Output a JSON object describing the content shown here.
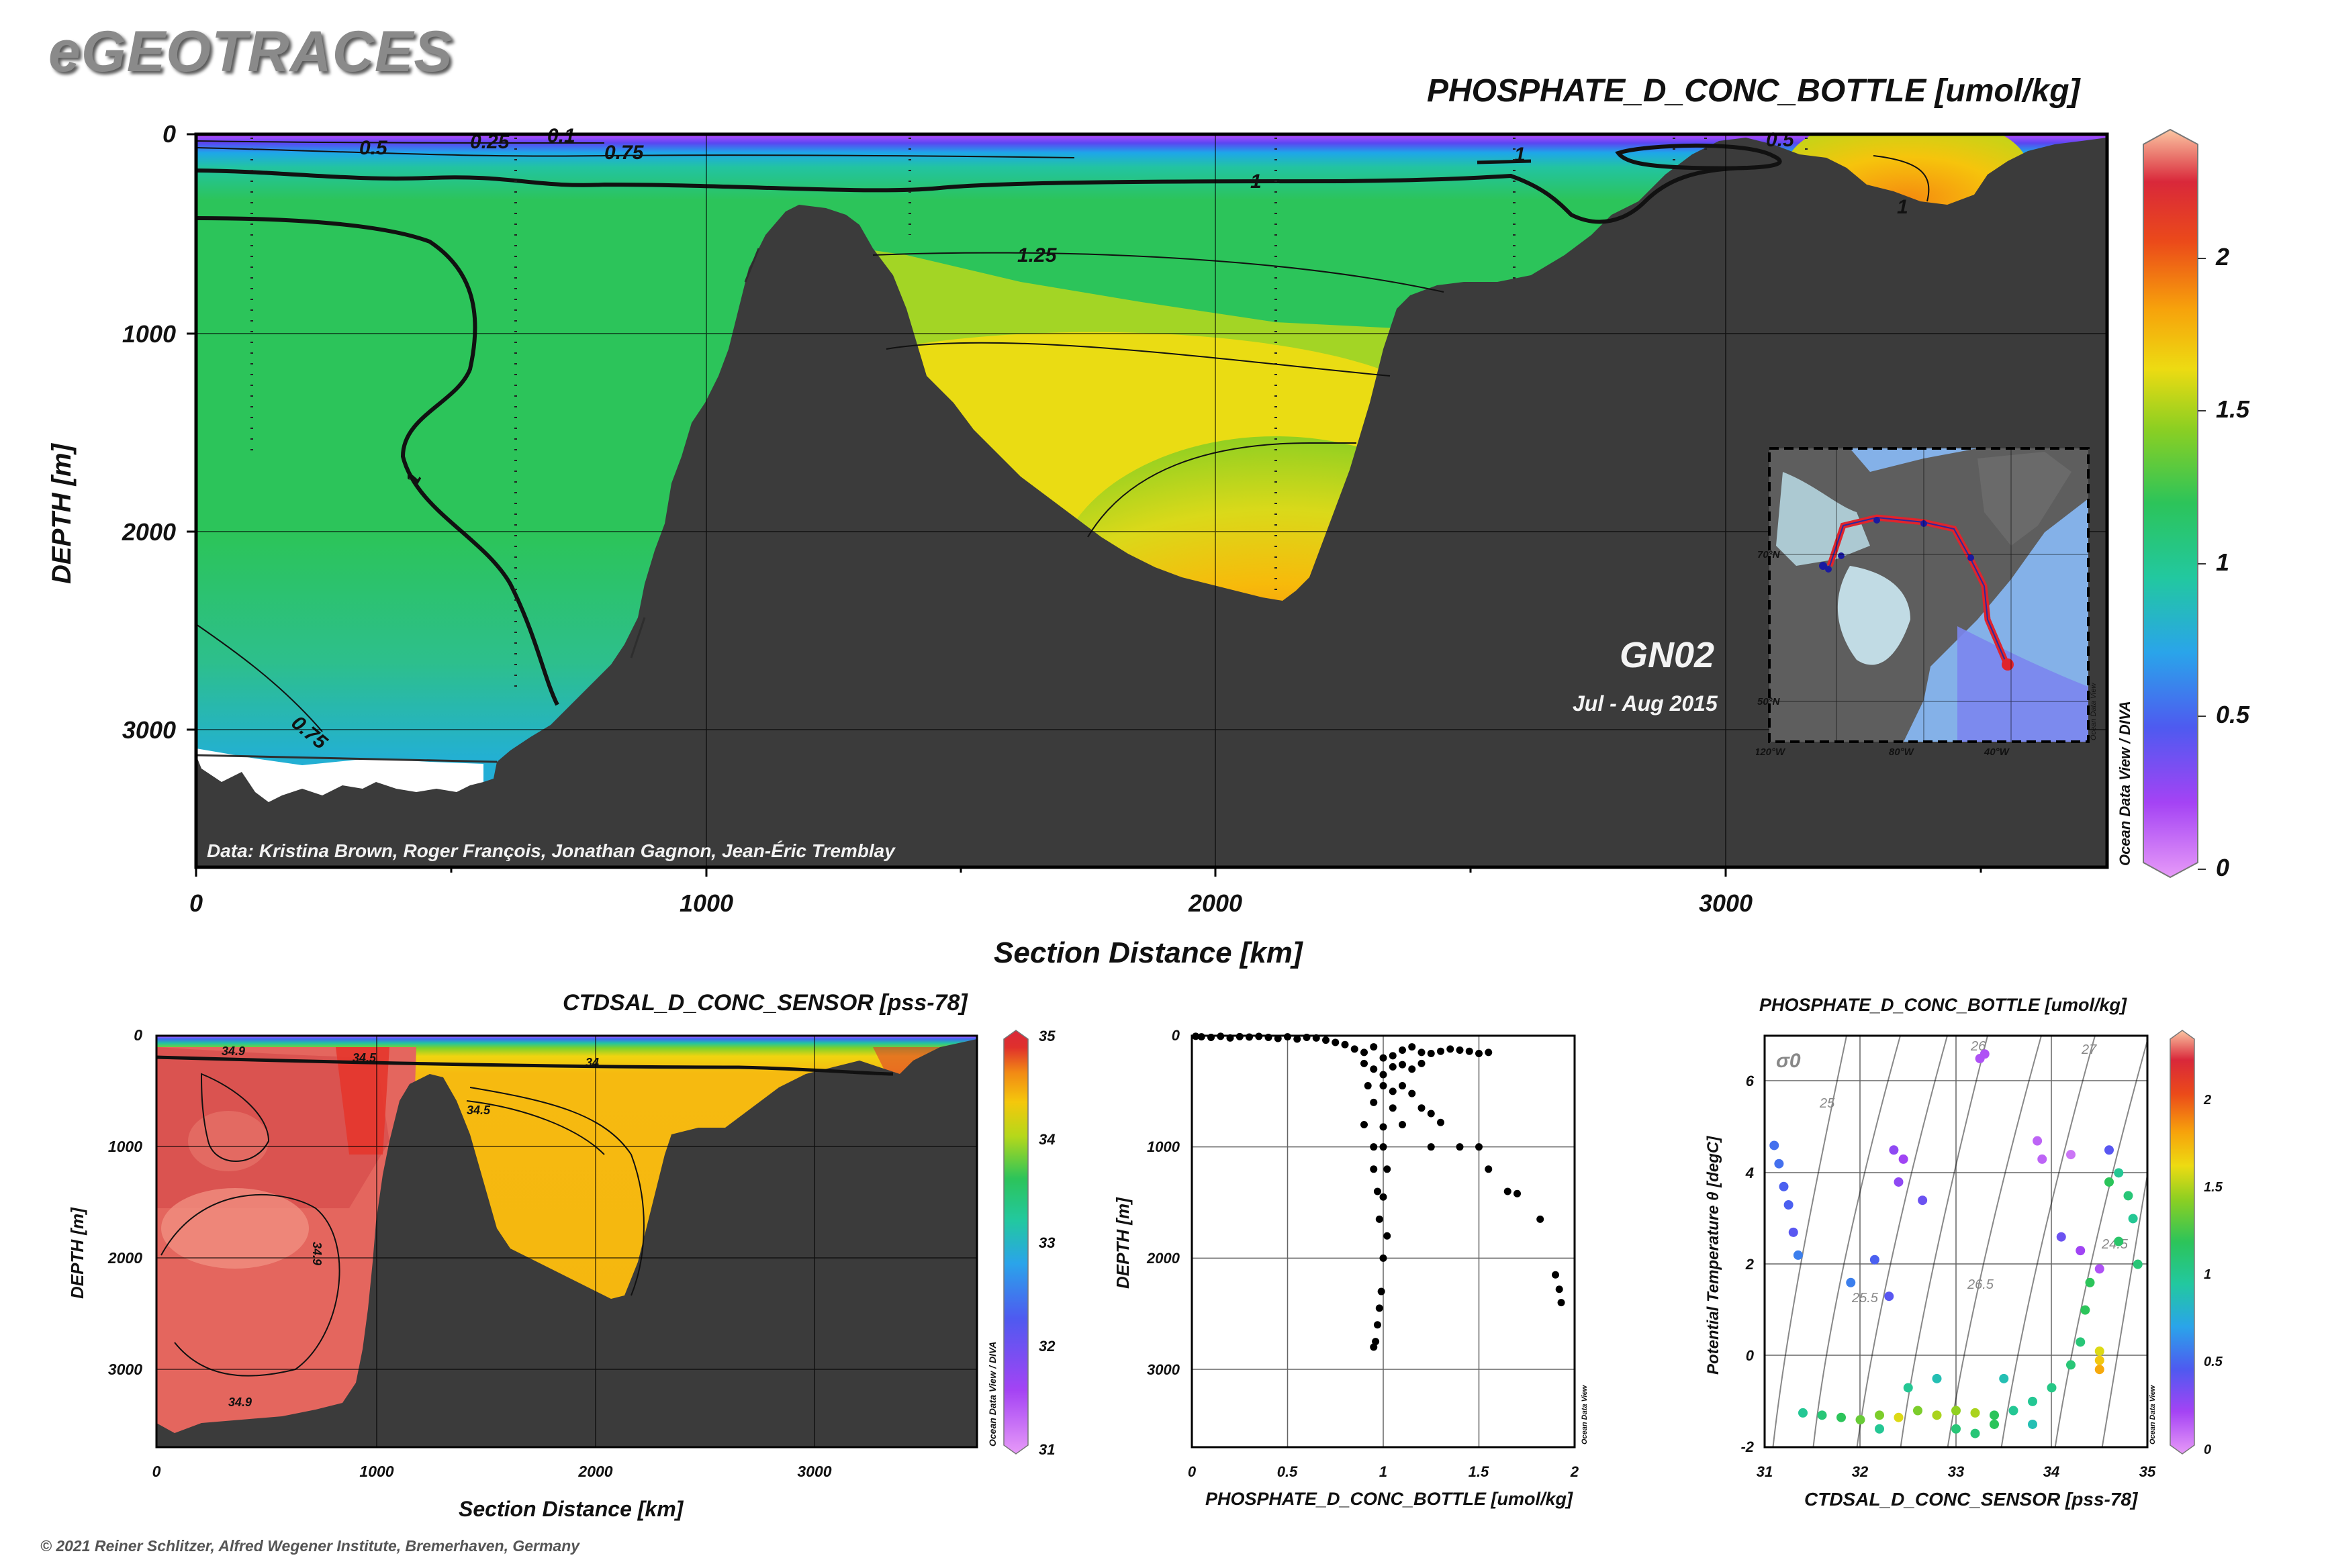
{
  "brand": "eGEOTRACES",
  "footer": "© 2021 Reiner Schlitzer, Alfred Wegener Institute, Bremerhaven, Germany",
  "main_section": {
    "title": "PHOSPHATE_D_CONC_BOTTLE [umol/kg]",
    "ylabel": "DEPTH [m]",
    "xlabel": "Section Distance [km]",
    "cruise": "GN02",
    "dates": "Jul - Aug 2015",
    "credit": "Data: Kristina Brown, Roger François, Jonathan Gagnon, Jean-Éric Tremblay",
    "odv_label": "Ocean Data View / DIVA"
  },
  "inset_map": {
    "lat_labels": [
      "70°N",
      "50°N"
    ],
    "lon_labels": [
      "120°W",
      "80°W",
      "40°W"
    ],
    "odv_label": "Ocean Data View"
  },
  "sal_section": {
    "title": "CTDSAL_D_CONC_SENSOR [pss-78]",
    "ylabel": "DEPTH [m]",
    "xlabel": "Section Distance [km]",
    "odv_label": "Ocean Data View / DIVA"
  },
  "profile": {
    "ylabel": "DEPTH [m]",
    "xlabel": "PHOSPHATE_D_CONC_BOTTLE [umol/kg]",
    "odv_label": "Ocean Data View"
  },
  "ts": {
    "title": "PHOSPHATE_D_CONC_BOTTLE [umol/kg]",
    "ylabel": "Potential Temperature θ [degC]",
    "xlabel": "CTDSAL_D_CONC_SENSOR [pss-78]",
    "sigma_label": "σ0",
    "odv_label": "Ocean Data View"
  },
  "chart_data": [
    {
      "type": "heatmap",
      "title": "PHOSPHATE_D_CONC_BOTTLE [umol/kg]",
      "xlabel": "Section Distance [km]",
      "ylabel": "DEPTH [m]",
      "xlim": [
        0,
        3750
      ],
      "ylim": [
        3700,
        0
      ],
      "x_ticks": [
        0,
        1000,
        2000,
        3000
      ],
      "y_ticks": [
        0,
        1000,
        2000,
        3000
      ],
      "colorbar": {
        "range": [
          0,
          2.4
        ],
        "ticks": [
          0,
          0.5,
          1,
          1.5,
          2
        ]
      },
      "contour_labels": [
        {
          "value": "0.5",
          "x": 350,
          "depth": 60
        },
        {
          "value": "0.25",
          "x": 580,
          "depth": 30
        },
        {
          "value": "0.1",
          "x": 720,
          "depth": 20
        },
        {
          "value": "0.75",
          "x": 850,
          "depth": 90
        },
        {
          "value": "1",
          "x": 2080,
          "depth": 230
        },
        {
          "value": "1.25",
          "x": 1700,
          "depth": 610
        },
        {
          "value": "1",
          "x": 450,
          "depth": 1800
        },
        {
          "value": "0.75",
          "x": 380,
          "depth": 3050
        },
        {
          "value": "1",
          "x": 2600,
          "depth": 100
        },
        {
          "value": "0.5",
          "x": 3005,
          "depth": 20
        },
        {
          "value": "1",
          "x": 3330,
          "depth": 350
        }
      ],
      "stations_km": [
        110,
        625,
        1400,
        2125,
        2590,
        2910,
        2975,
        3150
      ],
      "bathymetry": [
        [
          0,
          3120
        ],
        [
          80,
          3180
        ],
        [
          150,
          3300
        ],
        [
          250,
          3250
        ],
        [
          350,
          3280
        ],
        [
          480,
          3150
        ],
        [
          600,
          3000
        ],
        [
          700,
          2850
        ],
        [
          800,
          2600
        ],
        [
          860,
          2200
        ],
        [
          900,
          1650
        ],
        [
          950,
          1350
        ],
        [
          1000,
          1100
        ],
        [
          1050,
          750
        ],
        [
          1100,
          450
        ],
        [
          1150,
          350
        ],
        [
          1250,
          380
        ],
        [
          1300,
          430
        ],
        [
          1400,
          650
        ],
        [
          1480,
          900
        ],
        [
          1560,
          1300
        ],
        [
          1650,
          1480
        ],
        [
          1750,
          1650
        ],
        [
          1850,
          1880
        ],
        [
          1950,
          2050
        ],
        [
          2050,
          2250
        ],
        [
          2125,
          2350
        ],
        [
          2180,
          2280
        ],
        [
          2250,
          1800
        ],
        [
          2300,
          1300
        ],
        [
          2380,
          950
        ],
        [
          2450,
          850
        ],
        [
          2550,
          780
        ],
        [
          2650,
          700
        ],
        [
          2750,
          500
        ],
        [
          2850,
          300
        ],
        [
          2950,
          150
        ],
        [
          3050,
          80
        ],
        [
          3150,
          100
        ],
        [
          3250,
          250
        ],
        [
          3330,
          360
        ],
        [
          3420,
          200
        ],
        [
          3520,
          100
        ],
        [
          3650,
          30
        ],
        [
          3750,
          0
        ]
      ]
    },
    {
      "type": "heatmap",
      "title": "CTDSAL_D_CONC_SENSOR [pss-78]",
      "xlabel": "Section Distance [km]",
      "ylabel": "DEPTH [m]",
      "xlim": [
        0,
        3750
      ],
      "ylim": [
        3700,
        0
      ],
      "x_ticks": [
        0,
        1000,
        2000,
        3000
      ],
      "y_ticks": [
        0,
        1000,
        2000,
        3000
      ],
      "colorbar": {
        "range": [
          31,
          35
        ],
        "ticks": [
          31,
          32,
          33,
          34,
          35
        ]
      },
      "contour_labels": [
        {
          "value": "34.9",
          "x": 350,
          "depth": 160
        },
        {
          "value": "34.5",
          "x": 950,
          "depth": 200
        },
        {
          "value": "34",
          "x": 2000,
          "depth": 230
        },
        {
          "value": "34.5",
          "x": 1500,
          "depth": 650
        },
        {
          "value": "34.9",
          "x": 750,
          "depth": 1850
        },
        {
          "value": "34.9",
          "x": 380,
          "depth": 3300
        }
      ]
    },
    {
      "type": "scatter",
      "xlabel": "PHOSPHATE_D_CONC_BOTTLE [umol/kg]",
      "ylabel": "DEPTH [m]",
      "xlim": [
        0,
        2
      ],
      "ylim": [
        3700,
        0
      ],
      "x_ticks": [
        0,
        0.5,
        1,
        1.5,
        2
      ],
      "y_ticks": [
        0,
        1000,
        2000,
        3000
      ],
      "points": [
        [
          0.02,
          5
        ],
        [
          0.05,
          10
        ],
        [
          0.1,
          15
        ],
        [
          0.15,
          5
        ],
        [
          0.2,
          20
        ],
        [
          0.25,
          8
        ],
        [
          0.3,
          12
        ],
        [
          0.35,
          6
        ],
        [
          0.4,
          15
        ],
        [
          0.45,
          25
        ],
        [
          0.5,
          10
        ],
        [
          0.55,
          30
        ],
        [
          0.6,
          15
        ],
        [
          0.65,
          20
        ],
        [
          0.7,
          40
        ],
        [
          0.75,
          60
        ],
        [
          0.8,
          80
        ],
        [
          0.85,
          120
        ],
        [
          0.9,
          150
        ],
        [
          0.95,
          100
        ],
        [
          1.0,
          200
        ],
        [
          1.05,
          180
        ],
        [
          1.1,
          130
        ],
        [
          1.15,
          100
        ],
        [
          1.2,
          150
        ],
        [
          1.25,
          160
        ],
        [
          1.3,
          140
        ],
        [
          1.35,
          120
        ],
        [
          1.4,
          130
        ],
        [
          1.45,
          140
        ],
        [
          1.5,
          160
        ],
        [
          1.55,
          150
        ],
        [
          0.9,
          250
        ],
        [
          0.95,
          300
        ],
        [
          1.0,
          350
        ],
        [
          1.05,
          280
        ],
        [
          1.1,
          260
        ],
        [
          1.15,
          300
        ],
        [
          1.2,
          250
        ],
        [
          0.92,
          450
        ],
        [
          1.0,
          450
        ],
        [
          1.05,
          500
        ],
        [
          1.1,
          450
        ],
        [
          1.15,
          520
        ],
        [
          0.95,
          600
        ],
        [
          1.05,
          650
        ],
        [
          1.2,
          650
        ],
        [
          1.25,
          700
        ],
        [
          0.9,
          800
        ],
        [
          1.0,
          820
        ],
        [
          1.1,
          800
        ],
        [
          1.3,
          780
        ],
        [
          0.95,
          1000
        ],
        [
          1.0,
          1000
        ],
        [
          1.25,
          1000
        ],
        [
          1.4,
          1000
        ],
        [
          1.5,
          1000
        ],
        [
          0.95,
          1200
        ],
        [
          1.02,
          1200
        ],
        [
          1.55,
          1200
        ],
        [
          0.97,
          1400
        ],
        [
          1.0,
          1450
        ],
        [
          1.65,
          1400
        ],
        [
          1.7,
          1420
        ],
        [
          1.02,
          1800
        ],
        [
          0.98,
          1650
        ],
        [
          1.82,
          1650
        ],
        [
          1.0,
          2000
        ],
        [
          1.9,
          2150
        ],
        [
          0.99,
          2300
        ],
        [
          1.92,
          2280
        ],
        [
          0.98,
          2450
        ],
        [
          0.97,
          2600
        ],
        [
          0.96,
          2750
        ],
        [
          1.93,
          2400
        ],
        [
          0.95,
          2800
        ]
      ]
    },
    {
      "type": "scatter",
      "title": "PHOSPHATE_D_CONC_BOTTLE [umol/kg]",
      "xlabel": "CTDSAL_D_CONC_SENSOR [pss-78]",
      "ylabel": "Potential Temperature θ [degC]",
      "xlim": [
        31,
        35
      ],
      "ylim": [
        -2,
        7
      ],
      "x_ticks": [
        31,
        32,
        33,
        34,
        35
      ],
      "y_ticks": [
        -2,
        0,
        2,
        4,
        6
      ],
      "isopycnal_labels": [
        "25",
        "26",
        "26.5",
        "27",
        "25.5",
        "24.5"
      ],
      "colorbar": {
        "range": [
          0,
          2.4
        ],
        "ticks": [
          0,
          0.5,
          1,
          1.5,
          2
        ]
      },
      "points": [
        [
          31.1,
          4.6,
          0.55
        ],
        [
          31.15,
          4.2,
          0.55
        ],
        [
          31.2,
          3.7,
          0.5
        ],
        [
          31.25,
          3.3,
          0.5
        ],
        [
          31.3,
          2.7,
          0.45
        ],
        [
          31.35,
          2.2,
          0.6
        ],
        [
          31.9,
          1.6,
          0.6
        ],
        [
          32.15,
          2.1,
          0.5
        ],
        [
          32.3,
          1.3,
          0.45
        ],
        [
          32.4,
          3.8,
          0.3
        ],
        [
          32.45,
          4.3,
          0.25
        ],
        [
          32.35,
          4.5,
          0.3
        ],
        [
          32.65,
          3.4,
          0.4
        ],
        [
          33.25,
          6.5,
          0.2
        ],
        [
          33.3,
          6.6,
          0.2
        ],
        [
          33.85,
          4.7,
          0.15
        ],
        [
          33.9,
          4.3,
          0.15
        ],
        [
          34.2,
          4.4,
          0.1
        ],
        [
          34.5,
          1.9,
          0.2
        ],
        [
          34.1,
          2.6,
          0.4
        ],
        [
          34.3,
          2.3,
          0.25
        ],
        [
          34.6,
          4.5,
          0.45
        ],
        [
          34.7,
          4.0,
          1.0
        ],
        [
          34.8,
          3.5,
          1.1
        ],
        [
          34.85,
          3.0,
          1.0
        ],
        [
          34.9,
          2.0,
          1.1
        ],
        [
          34.4,
          1.6,
          1.2
        ],
        [
          34.35,
          1.0,
          1.2
        ],
        [
          34.3,
          0.3,
          1.1
        ],
        [
          34.2,
          -0.2,
          1.1
        ],
        [
          34.0,
          -0.7,
          1.05
        ],
        [
          33.8,
          -1.0,
          1.0
        ],
        [
          33.6,
          -1.2,
          1.0
        ],
        [
          33.4,
          -1.3,
          1.2
        ],
        [
          33.2,
          -1.25,
          1.5
        ],
        [
          33.0,
          -1.2,
          1.45
        ],
        [
          32.8,
          -1.3,
          1.5
        ],
        [
          32.6,
          -1.2,
          1.4
        ],
        [
          32.4,
          -1.35,
          1.6
        ],
        [
          32.2,
          -1.3,
          1.4
        ],
        [
          32.0,
          -1.4,
          1.35
        ],
        [
          31.8,
          -1.35,
          1.2
        ],
        [
          31.6,
          -1.3,
          1.1
        ],
        [
          31.4,
          -1.25,
          1.0
        ],
        [
          34.5,
          -0.3,
          1.8
        ],
        [
          34.5,
          -0.1,
          1.7
        ],
        [
          34.5,
          0.1,
          1.6
        ],
        [
          33.0,
          -1.6,
          1.1
        ],
        [
          33.2,
          -1.7,
          1.1
        ],
        [
          33.4,
          -1.5,
          1.2
        ],
        [
          32.5,
          -0.7,
          1.0
        ],
        [
          32.8,
          -0.5,
          0.9
        ],
        [
          33.5,
          -0.5,
          0.9
        ],
        [
          33.8,
          -1.5,
          0.9
        ],
        [
          32.2,
          -1.6,
          1.0
        ],
        [
          34.6,
          3.8,
          1.2
        ],
        [
          34.7,
          2.5,
          1.15
        ]
      ]
    }
  ]
}
